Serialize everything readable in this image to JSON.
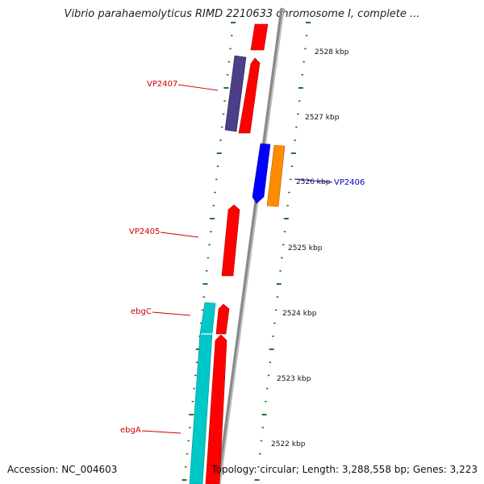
{
  "title": "Vibrio parahaemolyticus RIMD 2210633 chromosome I, complete ...",
  "accession": "Accession: NC_004603",
  "topology": "Topology: circular; Length: 3,288,558 bp; Genes: 3,223",
  "colors": {
    "backbone": "#8a8a8a",
    "tick": "#1f7a1f",
    "label_red": "#cc0000",
    "label_blue": "#0000cc",
    "forward_red": "#ff0000",
    "reverse_purple": "#4b3f8a",
    "reverse_blue": "#0000ff",
    "reverse_orange": "#ff8c00",
    "reverse_cyan": "#00c8c8"
  },
  "scale_labels": [
    {
      "label": "2528 kbp",
      "kbp": 2528
    },
    {
      "label": "2527 kbp",
      "kbp": 2527
    },
    {
      "label": "2526 kbp",
      "kbp": 2526
    },
    {
      "label": "2525 kbp",
      "kbp": 2525
    },
    {
      "label": "2524 kbp",
      "kbp": 2524
    },
    {
      "label": "2523 kbp",
      "kbp": 2523
    },
    {
      "label": "2522 kbp",
      "kbp": 2522
    }
  ],
  "genes": [
    {
      "name": "VP2407",
      "strand": "reverse",
      "color": "#4b3f8a"
    },
    {
      "name": "VP2406",
      "strand": "reverse",
      "color": "#0000ff"
    },
    {
      "name": "VP2405",
      "strand": "forward",
      "color": "#ff0000"
    },
    {
      "name": "ebgC",
      "strand": "forward",
      "color": "#ff0000"
    },
    {
      "name": "ebgA",
      "strand": "forward",
      "color": "#ff0000"
    }
  ]
}
